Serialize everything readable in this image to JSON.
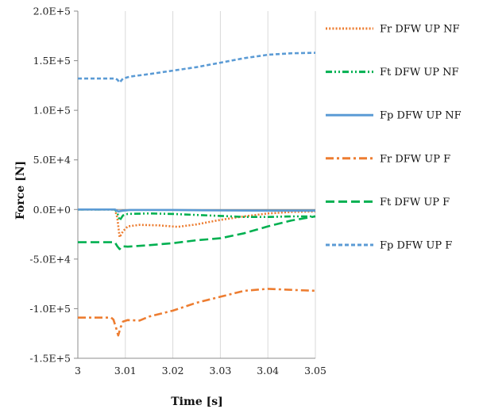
{
  "chart_data": {
    "type": "line",
    "xlabel": "Time [s]",
    "ylabel": "Force [N]",
    "xlim": [
      3.0,
      3.05
    ],
    "ylim": [
      -150000,
      200000
    ],
    "x_ticks": [
      "3",
      "3.01",
      "3.02",
      "3.03",
      "3.04",
      "3.05"
    ],
    "y_ticks": [
      "2.0E+5",
      "1.5E+5",
      "1.0E+5",
      "5.0E+4",
      "0.0E+0",
      "-5.0E+4",
      "-1.0E+5",
      "-1.5E+5"
    ],
    "grid": "vertical",
    "legend_position": "right",
    "series": [
      {
        "name": "Fr DFW UP NF",
        "color": "#ED7D31",
        "style": "dotted",
        "points": [
          [
            3.0,
            0
          ],
          [
            3.0078,
            0
          ],
          [
            3.0083,
            -8000
          ],
          [
            3.0088,
            -28000
          ],
          [
            3.0095,
            -22000
          ],
          [
            3.0105,
            -17000
          ],
          [
            3.013,
            -15500
          ],
          [
            3.017,
            -16000
          ],
          [
            3.021,
            -17500
          ],
          [
            3.025,
            -15000
          ],
          [
            3.03,
            -10500
          ],
          [
            3.035,
            -7000
          ],
          [
            3.04,
            -4000
          ],
          [
            3.045,
            -2500
          ],
          [
            3.05,
            -2000
          ]
        ]
      },
      {
        "name": "Ft DFW UP NF",
        "color": "#00B050",
        "style": "dashdotdot",
        "points": [
          [
            3.0,
            0
          ],
          [
            3.0078,
            0
          ],
          [
            3.0083,
            -3000
          ],
          [
            3.0088,
            -11000
          ],
          [
            3.0095,
            -6000
          ],
          [
            3.0105,
            -4500
          ],
          [
            3.015,
            -4000
          ],
          [
            3.02,
            -4500
          ],
          [
            3.025,
            -5500
          ],
          [
            3.03,
            -6500
          ],
          [
            3.035,
            -7500
          ],
          [
            3.04,
            -7500
          ],
          [
            3.045,
            -7000
          ],
          [
            3.05,
            -7000
          ]
        ]
      },
      {
        "name": "Fp DFW UP NF",
        "color": "#5B9BD5",
        "style": "solid",
        "points": [
          [
            3.0,
            0
          ],
          [
            3.0078,
            0
          ],
          [
            3.0085,
            -2000
          ],
          [
            3.0095,
            -1200
          ],
          [
            3.011,
            -500
          ],
          [
            3.02,
            -500
          ],
          [
            3.03,
            -1000
          ],
          [
            3.04,
            -1200
          ],
          [
            3.05,
            -1200
          ]
        ]
      },
      {
        "name": "Fr DFW UP F",
        "color": "#ED7D31",
        "style": "dashdot",
        "points": [
          [
            3.0,
            -109000
          ],
          [
            3.007,
            -109000
          ],
          [
            3.0075,
            -111000
          ],
          [
            3.0081,
            -120000
          ],
          [
            3.0085,
            -127000
          ],
          [
            3.009,
            -119000
          ],
          [
            3.0095,
            -113000
          ],
          [
            3.0105,
            -111500
          ],
          [
            3.013,
            -112000
          ],
          [
            3.015,
            -108000
          ],
          [
            3.02,
            -102000
          ],
          [
            3.025,
            -94000
          ],
          [
            3.03,
            -88000
          ],
          [
            3.035,
            -82000
          ],
          [
            3.04,
            -80000
          ],
          [
            3.045,
            -81000
          ],
          [
            3.05,
            -82000
          ]
        ]
      },
      {
        "name": "Ft DFW UP F",
        "color": "#00B050",
        "style": "dashed",
        "points": [
          [
            3.0,
            -33000
          ],
          [
            3.0078,
            -33000
          ],
          [
            3.0083,
            -37000
          ],
          [
            3.0088,
            -40000
          ],
          [
            3.0093,
            -37000
          ],
          [
            3.0105,
            -37500
          ],
          [
            3.015,
            -36000
          ],
          [
            3.02,
            -34000
          ],
          [
            3.025,
            -31000
          ],
          [
            3.03,
            -29000
          ],
          [
            3.035,
            -24000
          ],
          [
            3.04,
            -17000
          ],
          [
            3.045,
            -11000
          ],
          [
            3.05,
            -7000
          ]
        ]
      },
      {
        "name": "Fp DFW UP F",
        "color": "#5B9BD5",
        "style": "shortdash",
        "points": [
          [
            3.0,
            132000
          ],
          [
            3.0078,
            132000
          ],
          [
            3.0083,
            131000
          ],
          [
            3.0088,
            128000
          ],
          [
            3.0095,
            132000
          ],
          [
            3.011,
            134000
          ],
          [
            3.015,
            136500
          ],
          [
            3.02,
            140000
          ],
          [
            3.025,
            143500
          ],
          [
            3.03,
            148000
          ],
          [
            3.035,
            152500
          ],
          [
            3.04,
            156000
          ],
          [
            3.045,
            157500
          ],
          [
            3.05,
            158000
          ]
        ]
      }
    ]
  }
}
